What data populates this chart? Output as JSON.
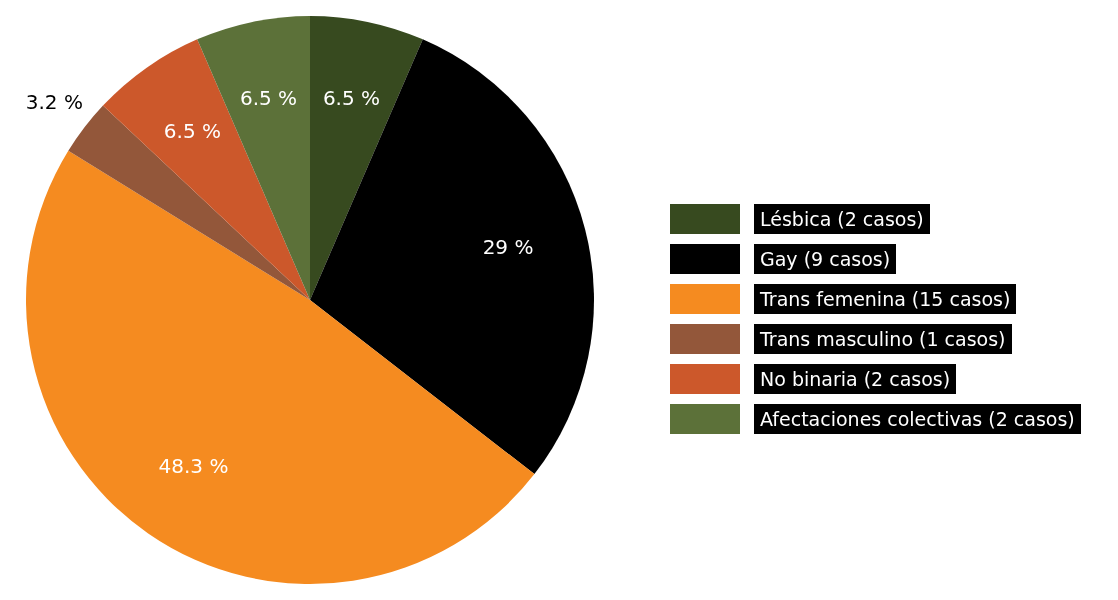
{
  "chart_data": {
    "type": "pie",
    "categories": [
      "Lésbica (2 casos)",
      "Gay (9 casos)",
      "Trans femenina (15 casos)",
      "Trans masculino (1 casos)",
      "No binaria (2 casos)",
      "Afectaciones colectivas (2 casos)"
    ],
    "values": [
      6.5,
      29,
      48.3,
      3.2,
      6.5,
      6.5
    ],
    "value_labels": [
      "6.5 %",
      "29 %",
      "48.3 %",
      "3.2 %",
      "6.5 %",
      "6.5 %"
    ],
    "colors": [
      "#374a1f",
      "#000000",
      "#f58b20",
      "#93573a",
      "#cc582b",
      "#5c7139"
    ],
    "legend": "right"
  }
}
